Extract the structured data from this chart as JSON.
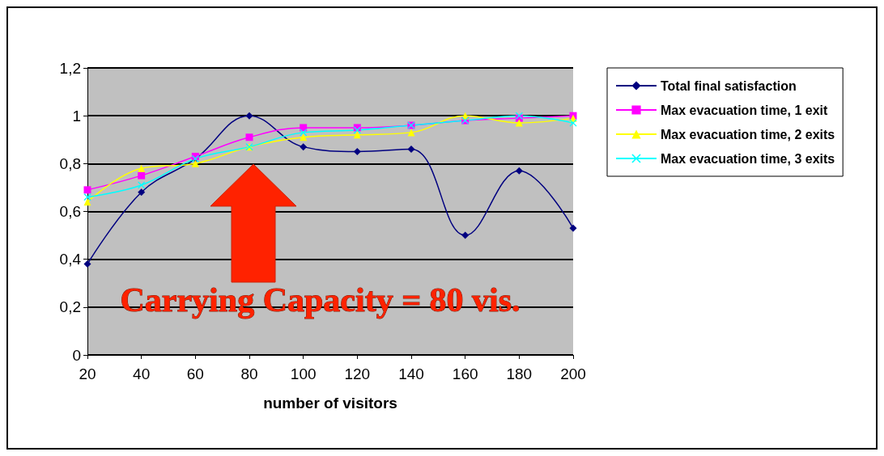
{
  "chart_data": {
    "type": "line",
    "xlabel": "number of visitors",
    "categories": [
      "20",
      "40",
      "60",
      "80",
      "100",
      "120",
      "140",
      "160",
      "180",
      "200"
    ],
    "series": [
      {
        "name": "Total final satisfaction",
        "color": "#000080",
        "marker": "diamond",
        "values": [
          0.38,
          0.68,
          0.82,
          1.0,
          0.87,
          0.85,
          0.86,
          0.5,
          0.77,
          0.53
        ]
      },
      {
        "name": "Max evacuation time, 1 exit",
        "color": "#ff00ff",
        "marker": "square",
        "values": [
          0.69,
          0.75,
          0.83,
          0.91,
          0.95,
          0.95,
          0.96,
          0.98,
          0.99,
          1.0
        ]
      },
      {
        "name": "Max evacuation time, 2 exits",
        "color": "#ffff00",
        "marker": "triangle",
        "values": [
          0.64,
          0.78,
          0.8,
          0.87,
          0.91,
          0.92,
          0.93,
          1.0,
          0.97,
          0.99
        ]
      },
      {
        "name": "Max evacuation time, 3 exits",
        "color": "#00ffff",
        "marker": "cross",
        "values": [
          0.66,
          0.71,
          0.82,
          0.87,
          0.93,
          0.94,
          0.96,
          0.98,
          1.0,
          0.97
        ]
      }
    ],
    "ylim": [
      0,
      1.2
    ],
    "yticks": [
      0,
      {
        "value": 0.2,
        "label": "0,2"
      },
      {
        "value": 0.4,
        "label": "0,4"
      },
      {
        "value": 0.6,
        "label": "0,6"
      },
      {
        "value": 0.8,
        "label": "0,8"
      },
      1,
      {
        "value": 1.2,
        "label": "1,2"
      }
    ],
    "grid": "y",
    "legend": "right",
    "line_style": "solid",
    "annotations": [
      "Carrying Capacity = 80 vis."
    ]
  }
}
